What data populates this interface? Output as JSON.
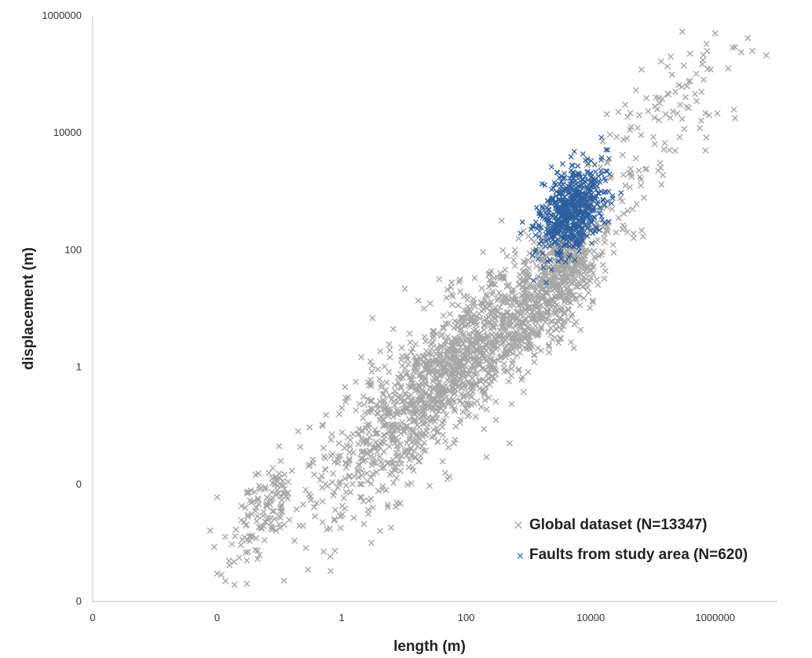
{
  "chart_data": {
    "type": "scatter",
    "title": "",
    "xlabel": "length (m)",
    "ylabel": "displacement (m)",
    "x_scale": "log",
    "y_scale": "log",
    "xlim": [
      0.0001,
      10000000
    ],
    "ylim": [
      0.0001,
      1000000
    ],
    "x_ticks": [
      0.0001,
      0.01,
      1,
      100,
      10000,
      1000000
    ],
    "x_tick_labels": [
      "0",
      "0",
      "1",
      "100",
      "10000",
      "1000000"
    ],
    "y_ticks": [
      0.0001,
      0.01,
      1,
      100,
      10000,
      1000000
    ],
    "y_tick_labels": [
      "0",
      "0",
      "1",
      "100",
      "10000",
      "1000000"
    ],
    "grid": false,
    "legend_position": "bottom-right",
    "colors": {
      "global": "#a6a6a6",
      "study": "#2e5f9e",
      "axis": "#bfbfbf"
    },
    "series": [
      {
        "name": "Global dataset (N=13347)",
        "marker": "x",
        "color": "#a6a6a6",
        "clusters": [
          {
            "x_center": 80,
            "y_center": 1.2,
            "x_spread": 1.0,
            "y_spread": 0.55,
            "share": 0.62
          },
          {
            "x_center": 3000,
            "y_center": 30,
            "x_spread": 0.45,
            "y_spread": 0.45,
            "share": 0.2
          },
          {
            "x_center": 150000,
            "y_center": 15000,
            "x_spread": 0.7,
            "y_spread": 0.6,
            "share": 0.05
          },
          {
            "x_center": 0.05,
            "y_center": 0.003,
            "x_spread": 0.3,
            "y_spread": 0.35,
            "share": 0.06
          },
          {
            "x_center": 4,
            "y_center": 0.05,
            "x_spread": 0.8,
            "y_spread": 0.8,
            "share": 0.07
          }
        ],
        "x": [
          0.01,
          0.01,
          0.03,
          0.03,
          0.2,
          0.5,
          3,
          30,
          200,
          500,
          600000,
          800000,
          1000000,
          2000000,
          700000
        ],
        "y": [
          0.006,
          0.0003,
          0.0005,
          0.0002,
          0.08,
          0.1,
          0.001,
          0.3,
          3,
          0.05,
          50000,
          20000,
          500000,
          25000,
          5000
        ]
      },
      {
        "name": "Faults from study area (N=620)",
        "marker": "x",
        "color": "#2e5f9e",
        "clusters": [
          {
            "x_center": 5000,
            "y_center": 500,
            "x_spread": 0.25,
            "y_spread": 0.35,
            "share": 1.0
          }
        ],
        "x": [
          1200,
          10000,
          15000,
          3000,
          8000
        ],
        "y": [
          30,
          2000,
          2000,
          150,
          1500
        ]
      }
    ]
  }
}
